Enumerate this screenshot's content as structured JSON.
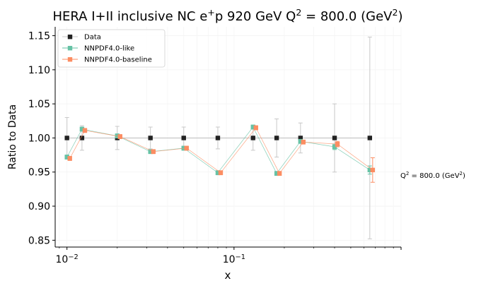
{
  "chart_data": {
    "type": "scatter",
    "title": "HERA I+II inclusive NC e⁺p 920 GeV Q² = 800.0 (GeV²)",
    "xlabel": "x",
    "ylabel": "Ratio to Data",
    "xscale": "log",
    "xlim": [
      0.0085,
      1.0
    ],
    "ylim": [
      0.84,
      1.163
    ],
    "ytick_labels": [
      "0.85",
      "0.90",
      "0.95",
      "1.00",
      "1.05",
      "1.10",
      "1.15"
    ],
    "yticks": [
      0.85,
      0.9,
      0.95,
      1.0,
      1.05,
      1.1,
      1.15
    ],
    "xtick_labels": [
      {
        "base": "10",
        "exp": "−2",
        "value": 0.01
      },
      {
        "base": "10",
        "exp": "−1",
        "value": 0.1
      }
    ],
    "annotation": {
      "text": "Q² = 800.0 (GeV²)",
      "base": "Q",
      "exp1": "2",
      "mid": " = 800.0 (GeV",
      "exp2": "2",
      "end": ")"
    },
    "legend_position": "upper left",
    "series": [
      {
        "name": "Data",
        "color": "#222222",
        "x": [
          0.01,
          0.0123,
          0.02,
          0.0316,
          0.05,
          0.08,
          0.13,
          0.18,
          0.25,
          0.4,
          0.65
        ],
        "y": [
          1.0,
          1.0,
          1.0,
          1.0,
          1.0,
          1.0,
          1.0,
          1.0,
          1.0,
          1.0,
          1.0
        ],
        "err": [
          0.03,
          0.018,
          0.017,
          0.016,
          0.016,
          0.016,
          0.018,
          0.028,
          0.022,
          0.05,
          0.148
        ]
      },
      {
        "name": "NNPDF4.0-like",
        "color": "#66c2a5",
        "x": [
          0.01,
          0.0123,
          0.02,
          0.0316,
          0.05,
          0.08,
          0.13,
          0.18,
          0.25,
          0.4,
          0.65
        ],
        "y": [
          0.972,
          1.013,
          1.003,
          0.98,
          0.985,
          0.949,
          1.016,
          0.948,
          0.995,
          0.987,
          0.953
        ],
        "err": [
          0.003,
          0.003,
          0.003,
          0.003,
          0.003,
          0.003,
          0.003,
          0.003,
          0.003,
          0.004,
          0.006
        ]
      },
      {
        "name": "NNPDF4.0-baseline",
        "color": "#fc8d62",
        "x": [
          0.0104,
          0.0128,
          0.0208,
          0.0329,
          0.052,
          0.0832,
          0.1352,
          0.1872,
          0.26,
          0.416,
          0.676
        ],
        "y": [
          0.97,
          1.011,
          1.002,
          0.98,
          0.985,
          0.949,
          1.015,
          0.948,
          0.994,
          0.991,
          0.953
        ],
        "err": [
          0.003,
          0.003,
          0.003,
          0.003,
          0.003,
          0.003,
          0.003,
          0.003,
          0.003,
          0.004,
          0.018
        ]
      }
    ]
  }
}
